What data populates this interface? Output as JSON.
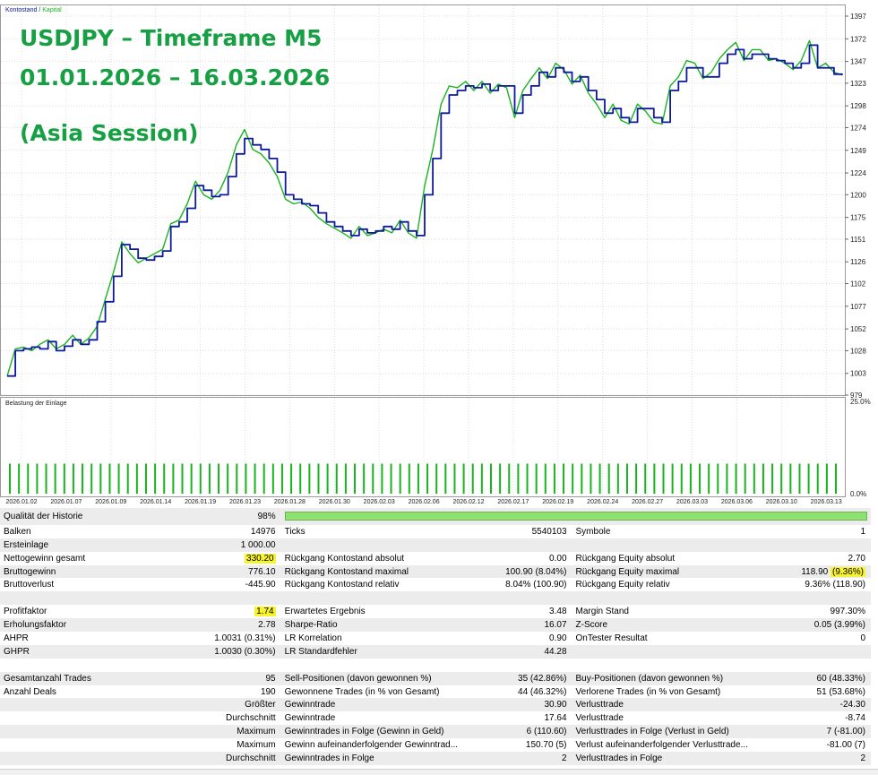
{
  "overlay": {
    "line1": "USDJPY – Timeframe M5",
    "line2": "01.01.2026 – 16.03.2026",
    "line3": "(Asia Session)"
  },
  "legend": {
    "balance": "Kontostand",
    "sep": " / ",
    "equity": "Kapital",
    "lower_title": "Belastung der Einlage"
  },
  "colors": {
    "balance": "#0d1a9e",
    "equity": "#19b31e",
    "load": "#19b31e",
    "highlight": "#f7f32e",
    "overlay_text": "#17a043"
  },
  "chart_data": [
    {
      "type": "line",
      "title": "",
      "y_ticks": [
        "1397",
        "1372",
        "1347",
        "1323",
        "1298",
        "1274",
        "1249",
        "1224",
        "1200",
        "1175",
        "1151",
        "1126",
        "1102",
        "1077",
        "1052",
        "1028",
        "1003",
        "979"
      ],
      "ylim": [
        979,
        1397
      ],
      "x_ticks": [
        "2026.01.02",
        "2026.01.07",
        "2026.01.09",
        "2026.01.14",
        "2026.01.19",
        "2026.01.23",
        "2026.01.28",
        "2026.01.30",
        "2026.02.03",
        "2026.02.06",
        "2026.02.12",
        "2026.02.17",
        "2026.02.19",
        "2026.02.24",
        "2026.02.27",
        "2026.03.03",
        "2026.03.06",
        "2026.03.10",
        "2026.03.13"
      ],
      "grid": true,
      "legend": "top-left",
      "series": [
        {
          "name": "Kontostand",
          "values": [
            1000,
            1028,
            1030,
            1032,
            1030,
            1038,
            1028,
            1033,
            1040,
            1035,
            1040,
            1060,
            1082,
            1110,
            1145,
            1140,
            1130,
            1128,
            1132,
            1138,
            1165,
            1170,
            1185,
            1210,
            1205,
            1198,
            1200,
            1220,
            1245,
            1262,
            1255,
            1250,
            1240,
            1225,
            1200,
            1195,
            1190,
            1188,
            1180,
            1170,
            1165,
            1160,
            1155,
            1162,
            1158,
            1160,
            1165,
            1162,
            1170,
            1160,
            1155,
            1200,
            1240,
            1290,
            1310,
            1315,
            1320,
            1318,
            1322,
            1315,
            1320,
            1320,
            1290,
            1310,
            1320,
            1335,
            1330,
            1340,
            1335,
            1325,
            1330,
            1315,
            1305,
            1290,
            1295,
            1285,
            1280,
            1295,
            1295,
            1285,
            1280,
            1315,
            1325,
            1340,
            1340,
            1330,
            1330,
            1345,
            1355,
            1360,
            1350,
            1355,
            1355,
            1350,
            1348,
            1345,
            1340,
            1345,
            1365,
            1340,
            1340,
            1333,
            1332
          ]
        },
        {
          "name": "Kapital",
          "values": [
            1000,
            1030,
            1032,
            1028,
            1035,
            1040,
            1030,
            1035,
            1045,
            1035,
            1042,
            1055,
            1085,
            1115,
            1148,
            1135,
            1125,
            1130,
            1135,
            1140,
            1168,
            1172,
            1190,
            1215,
            1200,
            1195,
            1205,
            1225,
            1255,
            1272,
            1250,
            1245,
            1235,
            1220,
            1195,
            1190,
            1192,
            1185,
            1175,
            1168,
            1163,
            1158,
            1152,
            1165,
            1155,
            1158,
            1162,
            1158,
            1172,
            1158,
            1152,
            1210,
            1250,
            1300,
            1320,
            1318,
            1325,
            1315,
            1325,
            1312,
            1322,
            1318,
            1285,
            1315,
            1328,
            1340,
            1328,
            1345,
            1338,
            1322,
            1332,
            1312,
            1300,
            1285,
            1300,
            1282,
            1278,
            1300,
            1292,
            1280,
            1278,
            1320,
            1330,
            1348,
            1345,
            1328,
            1335,
            1350,
            1360,
            1368,
            1348,
            1360,
            1360,
            1348,
            1350,
            1345,
            1338,
            1348,
            1370,
            1340,
            1345,
            1335,
            1332
          ]
        }
      ]
    },
    {
      "type": "bar",
      "title": "Belastung der Einlage",
      "y_ticks": [
        "25.0%",
        "0.0%"
      ],
      "ylim": [
        0,
        25
      ],
      "bar_count": 92,
      "bar_value": 6.5
    }
  ],
  "report": [
    [
      {
        "t": "Qualität der Historie"
      },
      {
        "t": "98%",
        "num": true
      },
      {
        "bar": true
      }
    ],
    [
      {
        "t": "Balken"
      },
      {
        "t": "14976",
        "num": true
      },
      {
        "t": "Ticks"
      },
      {
        "t": "5540103",
        "num": true
      },
      {
        "t": "Symbole"
      },
      {
        "t": "1",
        "num": true
      }
    ],
    [
      {
        "t": "Ersteinlage"
      },
      {
        "t": "1 000.00",
        "num": true
      },
      {
        "t": ""
      },
      {
        "t": ""
      },
      {
        "t": ""
      },
      {
        "t": ""
      }
    ],
    [
      {
        "t": "Nettogewinn gesamt"
      },
      {
        "t": "330.20",
        "num": true,
        "hl": true
      },
      {
        "t": "Rückgang Kontostand absolut"
      },
      {
        "t": "0.00",
        "num": true
      },
      {
        "t": "Rückgang Equity absolut"
      },
      {
        "t": "2.70",
        "num": true
      }
    ],
    [
      {
        "t": "Bruttogewinn"
      },
      {
        "t": "776.10",
        "num": true
      },
      {
        "t": "Rückgang Kontostand maximal"
      },
      {
        "t": "100.90 (8.04%)",
        "num": true
      },
      {
        "t": "Rückgang Equity maximal"
      },
      {
        "t": "118.90 ",
        "num": true,
        "hl2": "(9.36%)"
      }
    ],
    [
      {
        "t": "Bruttoverlust"
      },
      {
        "t": "-445.90",
        "num": true
      },
      {
        "t": "Rückgang Kontostand relativ"
      },
      {
        "t": "8.04% (100.90)",
        "num": true
      },
      {
        "t": "Rückgang Equity relativ"
      },
      {
        "t": "9.36% (118.90)",
        "num": true
      }
    ],
    [
      {
        "t": ""
      },
      {
        "t": ""
      },
      {
        "t": ""
      },
      {
        "t": ""
      },
      {
        "t": ""
      },
      {
        "t": ""
      }
    ],
    [
      {
        "t": "Profitfaktor"
      },
      {
        "t": "1.74",
        "num": true,
        "hl": true
      },
      {
        "t": "Erwartetes Ergebnis"
      },
      {
        "t": "3.48",
        "num": true
      },
      {
        "t": "Margin Stand"
      },
      {
        "t": "997.30%",
        "num": true
      }
    ],
    [
      {
        "t": "Erholungsfaktor"
      },
      {
        "t": "2.78",
        "num": true
      },
      {
        "t": "Sharpe-Ratio"
      },
      {
        "t": "16.07",
        "num": true
      },
      {
        "t": "Z-Score"
      },
      {
        "t": "0.05 (3.99%)",
        "num": true
      }
    ],
    [
      {
        "t": "AHPR"
      },
      {
        "t": "1.0031 (0.31%)",
        "num": true
      },
      {
        "t": "LR Korrelation"
      },
      {
        "t": "0.90",
        "num": true
      },
      {
        "t": "OnTester Resultat"
      },
      {
        "t": "0",
        "num": true
      }
    ],
    [
      {
        "t": "GHPR"
      },
      {
        "t": "1.0030 (0.30%)",
        "num": true
      },
      {
        "t": "LR Standardfehler"
      },
      {
        "t": "44.28",
        "num": true
      },
      {
        "t": ""
      },
      {
        "t": ""
      }
    ],
    [
      {
        "t": ""
      },
      {
        "t": ""
      },
      {
        "t": ""
      },
      {
        "t": ""
      },
      {
        "t": ""
      },
      {
        "t": ""
      }
    ],
    [
      {
        "t": "Gesamtanzahl Trades"
      },
      {
        "t": "95",
        "num": true
      },
      {
        "t": "Sell-Positionen (davon gewonnen %)"
      },
      {
        "t": "35 (42.86%)",
        "num": true
      },
      {
        "t": "Buy-Positionen (davon gewonnen %)"
      },
      {
        "t": "60 (48.33%)",
        "num": true
      }
    ],
    [
      {
        "t": "Anzahl Deals"
      },
      {
        "t": "190",
        "num": true
      },
      {
        "t": "Gewonnene Trades (in % von Gesamt)"
      },
      {
        "t": "44 (46.32%)",
        "num": true
      },
      {
        "t": "Verlorene Trades (in % von Gesamt)"
      },
      {
        "t": "51 (53.68%)",
        "num": true
      }
    ],
    [
      {
        "t": ""
      },
      {
        "t": "Größter",
        "num": true
      },
      {
        "t": "Gewinntrade"
      },
      {
        "t": "30.90",
        "num": true
      },
      {
        "t": "Verlusttrade"
      },
      {
        "t": "-24.30",
        "num": true
      }
    ],
    [
      {
        "t": ""
      },
      {
        "t": "Durchschnitt",
        "num": true
      },
      {
        "t": "Gewinntrade"
      },
      {
        "t": "17.64",
        "num": true
      },
      {
        "t": "Verlusttrade"
      },
      {
        "t": "-8.74",
        "num": true
      }
    ],
    [
      {
        "t": ""
      },
      {
        "t": "Maximum",
        "num": true
      },
      {
        "t": "Gewinntrades in Folge (Gewinn in Geld)"
      },
      {
        "t": "6 (110.60)",
        "num": true
      },
      {
        "t": "Verlusttrades in Folge (Verlust in Geld)"
      },
      {
        "t": "7 (-81.00)",
        "num": true
      }
    ],
    [
      {
        "t": ""
      },
      {
        "t": "Maximum",
        "num": true
      },
      {
        "t": "Gewinn aufeinanderfolgender Gewinntrad..."
      },
      {
        "t": "150.70 (5)",
        "num": true
      },
      {
        "t": "Verlust aufeinanderfolgender Verlusttrade..."
      },
      {
        "t": "-81.00 (7)",
        "num": true
      }
    ],
    [
      {
        "t": ""
      },
      {
        "t": "Durchschnitt",
        "num": true
      },
      {
        "t": "Gewinntrades in Folge"
      },
      {
        "t": "2",
        "num": true
      },
      {
        "t": "Verlusttrades in Folge"
      },
      {
        "t": "2",
        "num": true
      }
    ]
  ]
}
